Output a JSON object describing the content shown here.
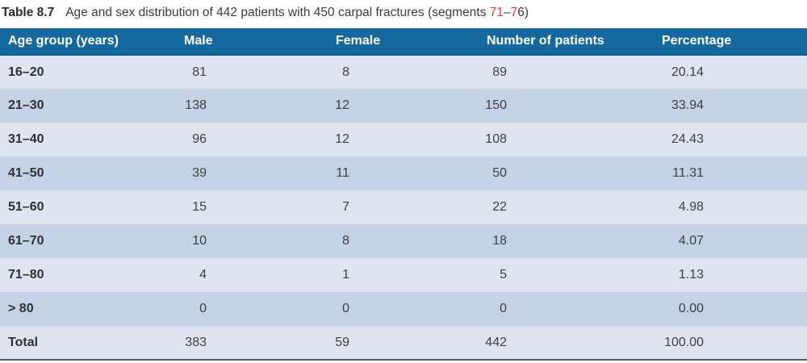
{
  "colors": {
    "header_bg": "#16699e",
    "header_text": "#ffffff",
    "row_light": "#dfe5f0",
    "row_dark": "#c5d1e5",
    "caption_text": "#3c3c3c",
    "reference_red": "#e23b3f",
    "bottom_rule": "#4e5f76"
  },
  "caption": {
    "label": "Table 8.7",
    "text_prefix": "Age and sex distribution of 442 patients with 450 carpal fractures (segments ",
    "segment_ref_1": "71",
    "dash": "–",
    "segment_ref_2": "7",
    "text_suffix": "6)"
  },
  "table": {
    "headers": [
      "Age group (years)",
      "Male",
      "Female",
      "Number of patients",
      "Percentage"
    ],
    "rows": [
      {
        "age_group": "16–20",
        "male": "81",
        "female": "8",
        "patients": "89",
        "percentage": "20.14"
      },
      {
        "age_group": "21–30",
        "male": "138",
        "female": "12",
        "patients": "150",
        "percentage": "33.94"
      },
      {
        "age_group": "31–40",
        "male": "96",
        "female": "12",
        "patients": "108",
        "percentage": "24.43"
      },
      {
        "age_group": "41–50",
        "male": "39",
        "female": "11",
        "patients": "50",
        "percentage": "11.31"
      },
      {
        "age_group": "51–60",
        "male": "15",
        "female": "7",
        "patients": "22",
        "percentage": "4.98"
      },
      {
        "age_group": "61–70",
        "male": "10",
        "female": "8",
        "patients": "18",
        "percentage": "4.07"
      },
      {
        "age_group": "71–80",
        "male": "4",
        "female": "1",
        "patients": "5",
        "percentage": "1.13"
      },
      {
        "age_group": "> 80",
        "male": "0",
        "female": "0",
        "patients": "0",
        "percentage": "0.00"
      },
      {
        "age_group": "Total",
        "male": "383",
        "female": "59",
        "patients": "442",
        "percentage": "100.00"
      }
    ]
  }
}
